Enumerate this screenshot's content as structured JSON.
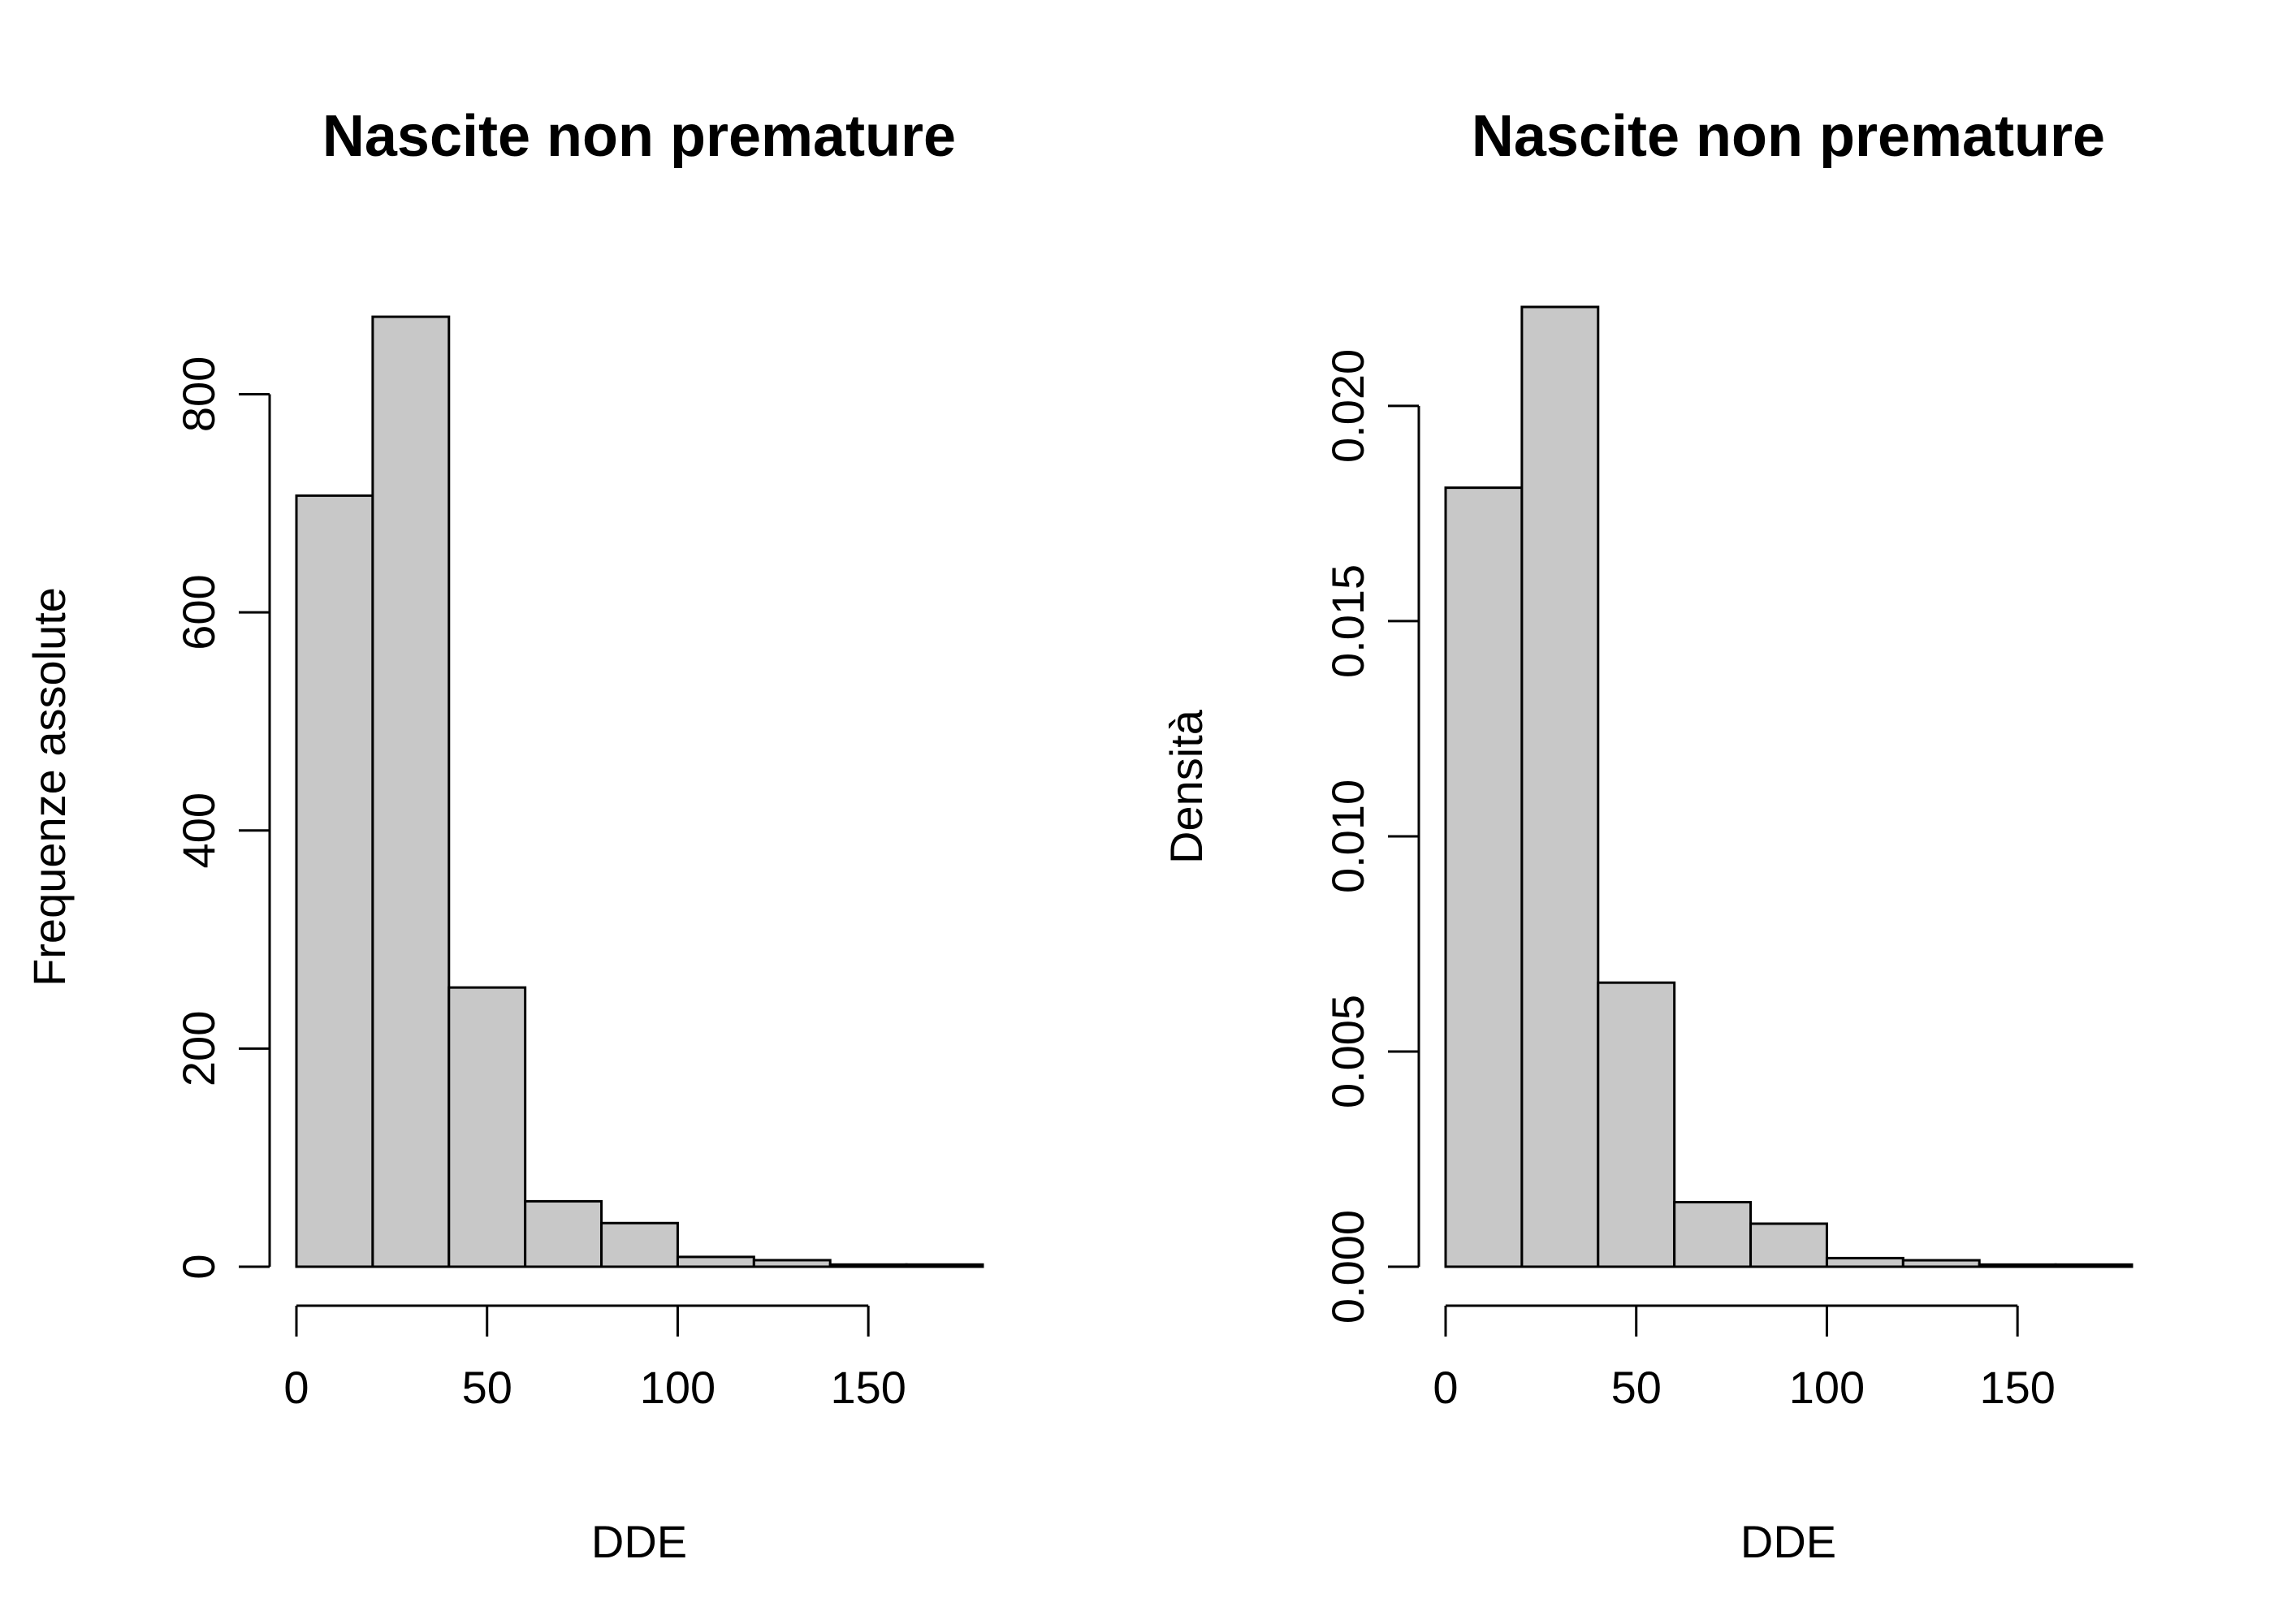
{
  "chart_data": [
    {
      "type": "bar",
      "title": "Nascite non premature",
      "xlabel": "DDE",
      "ylabel": "Frequenze assolute",
      "bin_edges": [
        0,
        20,
        40,
        60,
        80,
        100,
        120,
        140,
        160,
        180
      ],
      "values": [
        707,
        871,
        256,
        60,
        40,
        9,
        6,
        2,
        2
      ],
      "xlim": [
        0,
        180
      ],
      "ylim": [
        0,
        880
      ],
      "x_ticks": [
        0,
        50,
        100,
        150
      ],
      "x_tick_labels": [
        "0",
        "50",
        "100",
        "150"
      ],
      "y_ticks": [
        0,
        200,
        400,
        600,
        800
      ],
      "y_tick_labels": [
        "0",
        "200",
        "400",
        "600",
        "800"
      ],
      "bar_color": "#c8c8c8",
      "grid": false,
      "legend": "none"
    },
    {
      "type": "bar",
      "title": "Nascite non premature",
      "xlabel": "DDE",
      "ylabel": "Densità",
      "bin_edges": [
        0,
        20,
        40,
        60,
        80,
        100,
        120,
        140,
        160,
        180
      ],
      "values": [
        0.0181,
        0.0223,
        0.0066,
        0.0015,
        0.001,
        0.0002,
        0.00015,
        5e-05,
        5e-05
      ],
      "xlim": [
        0,
        180
      ],
      "ylim": [
        0,
        0.0223
      ],
      "x_ticks": [
        0,
        50,
        100,
        150
      ],
      "x_tick_labels": [
        "0",
        "50",
        "100",
        "150"
      ],
      "y_ticks": [
        0,
        0.005,
        0.01,
        0.015,
        0.02
      ],
      "y_tick_labels": [
        "0.000",
        "0.005",
        "0.010",
        "0.015",
        "0.020"
      ],
      "bar_color": "#c8c8c8",
      "grid": false,
      "legend": "none"
    }
  ]
}
